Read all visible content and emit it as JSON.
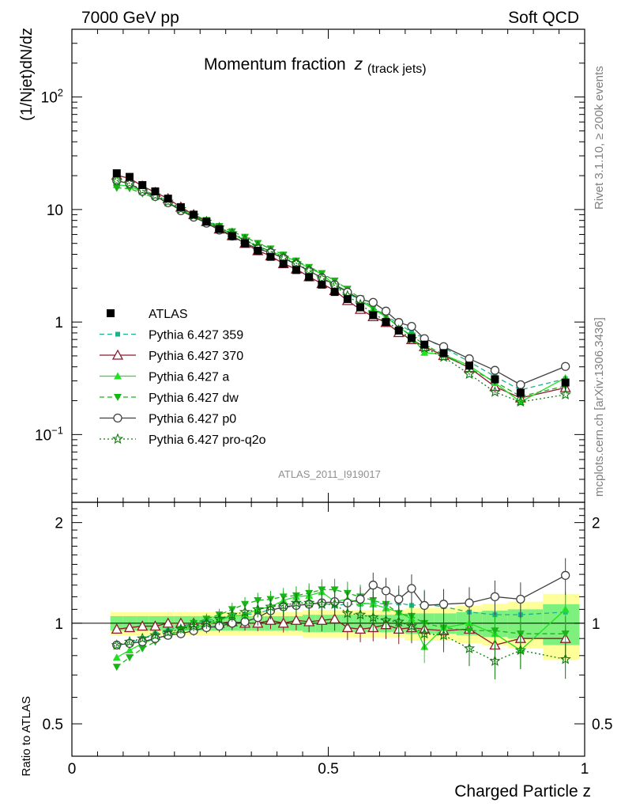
{
  "header": {
    "left": "7000 GeV pp",
    "right": "Soft QCD"
  },
  "main_title": "Momentum fraction",
  "main_title_symbol": "z",
  "main_title_sub": "(track jets)",
  "side_label_top": "Rivet 3.1.10, ≥ 200k events",
  "side_label_bottom": "mcplots.cern.ch [arXiv:1306.3436]",
  "analysis_id": "ATLAS_2011_I919017",
  "ylabel_top": "(1/Njet)dN/dz",
  "ylabel_bottom": "Ratio to ATLAS",
  "xlabel": "Charged Particle z",
  "x_ticks": [
    "0",
    "0.5",
    "1"
  ],
  "y_ticks_top": [
    {
      "label": "10",
      "sup": "−1",
      "v": 0.1
    },
    {
      "label": "1",
      "sup": "",
      "v": 1
    },
    {
      "label": "10",
      "sup": "",
      "v": 10
    },
    {
      "label": "10",
      "sup": "2",
      "v": 100
    }
  ],
  "y_ticks_ratio": [
    {
      "label": "0.5",
      "v": 0.5
    },
    {
      "label": "1",
      "v": 1
    },
    {
      "label": "2",
      "v": 2
    }
  ],
  "chart_data": {
    "type": "scatter",
    "title": "Momentum fraction z(track jets)",
    "xlabel": "Charged Particle z",
    "ylabel": "(1/Njet)dN/dz",
    "yscale": "log",
    "xlim": [
      0,
      1.0
    ],
    "ylim": [
      0.025,
      400
    ],
    "ratio_ylabel": "Ratio to ATLAS",
    "ratio_ylim": [
      0.4,
      2.3
    ],
    "legend_position": "middle-left",
    "x": [
      0.0875,
      0.1125,
      0.1375,
      0.1625,
      0.1875,
      0.2125,
      0.2375,
      0.2625,
      0.2875,
      0.3125,
      0.3375,
      0.3625,
      0.3875,
      0.4125,
      0.4375,
      0.4625,
      0.4875,
      0.5125,
      0.5375,
      0.5625,
      0.5875,
      0.6125,
      0.6375,
      0.6625,
      0.6875,
      0.725,
      0.775,
      0.825,
      0.875,
      0.9625
    ],
    "atlas": {
      "name": "ATLAS",
      "values": [
        21.0,
        19.5,
        16.5,
        14.5,
        12.5,
        10.5,
        9.0,
        7.8,
        6.7,
        5.8,
        5.0,
        4.3,
        3.8,
        3.3,
        2.9,
        2.5,
        2.15,
        1.85,
        1.6,
        1.35,
        1.15,
        1.0,
        0.84,
        0.72,
        0.63,
        0.53,
        0.41,
        0.31,
        0.235,
        0.29
      ],
      "band_rel": [
        0.05,
        0.05,
        0.05,
        0.05,
        0.05,
        0.05,
        0.05,
        0.05,
        0.05,
        0.05,
        0.05,
        0.05,
        0.05,
        0.05,
        0.05,
        0.06,
        0.06,
        0.06,
        0.06,
        0.06,
        0.06,
        0.06,
        0.06,
        0.07,
        0.07,
        0.07,
        0.08,
        0.09,
        0.1,
        0.14
      ]
    },
    "series": [
      {
        "name": "Pythia 6.427 359",
        "ratio": [
          0.86,
          0.87,
          0.9,
          0.93,
          0.95,
          0.98,
          1.0,
          1.02,
          1.03,
          1.05,
          1.06,
          1.07,
          1.1,
          1.11,
          1.13,
          1.14,
          1.15,
          1.13,
          1.14,
          1.14,
          1.15,
          1.14,
          1.15,
          1.13,
          1.14,
          1.12,
          1.08,
          1.06,
          1.06,
          1.08
        ]
      },
      {
        "name": "Pythia 6.427 370",
        "ratio": [
          0.96,
          0.97,
          0.98,
          0.98,
          1.0,
          1.0,
          1.0,
          1.0,
          1.0,
          1.01,
          1.0,
          1.0,
          1.02,
          1.0,
          1.02,
          1.01,
          1.02,
          1.03,
          0.97,
          0.96,
          0.97,
          0.99,
          0.96,
          0.97,
          0.96,
          0.95,
          0.96,
          0.86,
          0.9,
          0.9
        ]
      },
      {
        "name": "Pythia 6.427 a",
        "ratio": [
          0.79,
          0.83,
          0.87,
          0.9,
          0.92,
          0.95,
          0.97,
          0.99,
          1.02,
          1.05,
          1.06,
          1.1,
          1.12,
          1.17,
          1.2,
          1.21,
          1.24,
          1.16,
          1.18,
          1.15,
          1.14,
          1.11,
          1.08,
          1.03,
          0.85,
          0.97,
          1.0,
          0.93,
          0.83,
          1.1
        ]
      },
      {
        "name": "Pythia 6.427 dw",
        "ratio": [
          0.74,
          0.79,
          0.84,
          0.88,
          0.92,
          0.96,
          1.0,
          1.03,
          1.06,
          1.1,
          1.14,
          1.17,
          1.18,
          1.2,
          1.21,
          1.23,
          1.26,
          1.26,
          1.23,
          1.2,
          1.17,
          1.14,
          1.07,
          1.05,
          1.0,
          0.97,
          0.95,
          0.95,
          0.93,
          0.93
        ]
      },
      {
        "name": "Pythia 6.427 p0",
        "ratio": [
          0.86,
          0.87,
          0.88,
          0.9,
          0.92,
          0.93,
          0.95,
          0.97,
          0.98,
          1.0,
          1.01,
          1.04,
          1.09,
          1.12,
          1.13,
          1.14,
          1.15,
          1.16,
          1.15,
          1.18,
          1.3,
          1.25,
          1.18,
          1.27,
          1.13,
          1.14,
          1.15,
          1.2,
          1.18,
          1.39
        ]
      },
      {
        "name": "Pythia 6.427 pro-q2o",
        "ratio": [
          0.86,
          0.88,
          0.9,
          0.92,
          0.94,
          0.96,
          0.98,
          1.0,
          1.03,
          1.06,
          1.08,
          1.1,
          1.12,
          1.13,
          1.15,
          1.15,
          1.14,
          1.14,
          1.07,
          1.06,
          1.04,
          1.02,
          1.01,
          0.98,
          0.93,
          0.92,
          0.84,
          0.77,
          0.83,
          0.78
        ]
      }
    ],
    "styles": [
      {
        "color": "#1ab28f",
        "marker": "square-filled",
        "dash": "6,4"
      },
      {
        "color": "#8b1a2b",
        "marker": "triangle-open",
        "dash": ""
      },
      {
        "color": "#22e022",
        "marker": "triangle-filled",
        "dash": ""
      },
      {
        "color": "#18b418",
        "marker": "triangle-down-filled",
        "dash": "6,4"
      },
      {
        "color": "#404040",
        "marker": "circle-open",
        "dash": ""
      },
      {
        "color": "#0d7a0d",
        "marker": "star-open",
        "dash": "2,3"
      }
    ]
  }
}
